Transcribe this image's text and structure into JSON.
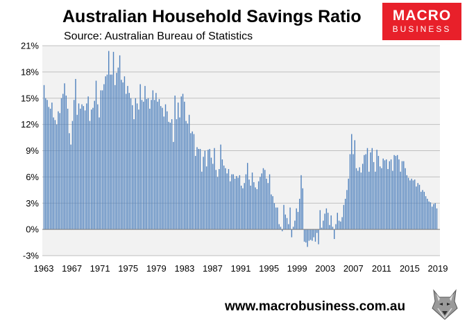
{
  "title": "Australian Household Savings Ratio",
  "subtitle": "Source: Australian Bureau of Statistics",
  "logo": {
    "line1": "MACRO",
    "line2": "BUSINESS"
  },
  "footer": {
    "url": "www.macrobusiness.com.au"
  },
  "colors": {
    "bar": "#4f81bd",
    "plot_bg": "#f2f2f2",
    "grid": "#bfbfbf",
    "logo": "#e8202a"
  },
  "chart_data": {
    "type": "bar",
    "title": "Australian Household Savings Ratio",
    "subtitle": "Source: Australian Bureau of Statistics",
    "frequency": "quarterly",
    "ylim": [
      -3,
      21
    ],
    "yticks": [
      "21%",
      "18%",
      "15%",
      "12%",
      "9%",
      "6%",
      "3%",
      "0%",
      "-3%"
    ],
    "xticks": [
      "1963",
      "1967",
      "1971",
      "1975",
      "1979",
      "1983",
      "1987",
      "1991",
      "1995",
      "1999",
      "2003",
      "2007",
      "2011",
      "2015",
      "2019"
    ],
    "grid": true,
    "legend": "none",
    "values": [
      16.5,
      15.0,
      14.8,
      14.0,
      13.8,
      14.5,
      12.8,
      12.5,
      12.0,
      13.5,
      13.3,
      15.0,
      15.5,
      16.7,
      15.3,
      13.8,
      11.0,
      9.7,
      12.4,
      14.8,
      17.2,
      13.1,
      14.4,
      13.8,
      14.3,
      14.1,
      13.6,
      14.4,
      15.2,
      12.4,
      13.7,
      13.9,
      14.7,
      17.0,
      14.3,
      12.8,
      15.9,
      15.9,
      16.6,
      17.5,
      17.7,
      20.4,
      17.7,
      17.7,
      20.3,
      16.5,
      17.9,
      18.5,
      19.9,
      17.1,
      16.8,
      17.5,
      15.5,
      16.4,
      15.6,
      15.0,
      14.2,
      12.6,
      15.0,
      14.4,
      13.7,
      16.6,
      14.8,
      14.6,
      16.4,
      14.9,
      15.0,
      13.8,
      14.8,
      15.9,
      14.8,
      15.6,
      14.6,
      14.9,
      14.1,
      13.9,
      12.9,
      14.3,
      13.5,
      12.3,
      12.2,
      12.6,
      10.0,
      15.3,
      12.6,
      14.5,
      12.8,
      15.2,
      15.5,
      14.6,
      12.4,
      12.1,
      13.1,
      11.0,
      11.2,
      10.9,
      8.4,
      9.4,
      9.2,
      9.2,
      6.6,
      8.3,
      9.0,
      7.2,
      9.1,
      9.2,
      8.2,
      7.5,
      9.3,
      6.8,
      6.0,
      6.9,
      9.7,
      8.0,
      7.3,
      7.0,
      6.4,
      6.9,
      5.5,
      6.3,
      6.3,
      5.8,
      6.1,
      5.9,
      6.2,
      5.0,
      4.7,
      5.3,
      6.3,
      7.6,
      5.7,
      5.0,
      6.5,
      5.4,
      4.8,
      4.6,
      5.5,
      6.0,
      6.4,
      7.0,
      6.8,
      5.8,
      5.3,
      6.3,
      4.0,
      3.8,
      3.0,
      2.5,
      2.5,
      0.6,
      0.3,
      -0.2,
      2.8,
      1.7,
      1.3,
      0.6,
      2.5,
      -0.9,
      0.3,
      1.0,
      2.4,
      2.0,
      3.5,
      6.2,
      4.7,
      -1.4,
      -1.5,
      -2.0,
      -1.3,
      -1.2,
      -1.3,
      -0.9,
      -1.4,
      -0.4,
      -1.7,
      2.2,
      0.2,
      1.0,
      1.8,
      2.4,
      1.9,
      0.5,
      1.6,
      0.3,
      -1.1,
      0.6,
      1.9,
      1.0,
      0.9,
      1.4,
      2.8,
      3.5,
      4.5,
      5.8,
      8.6,
      10.9,
      8.6,
      10.2,
      7.0,
      6.7,
      7.1,
      6.5,
      7.5,
      8.5,
      8.6,
      9.3,
      6.6,
      8.8,
      9.3,
      7.7,
      6.6,
      9.1,
      8.4,
      7.2,
      7.0,
      8.1,
      7.9,
      8.0,
      6.9,
      7.8,
      8.0,
      6.7,
      8.5,
      8.4,
      8.5,
      8.0,
      6.6,
      7.8,
      7.8,
      7.0,
      6.2,
      5.9,
      5.6,
      5.8,
      5.6,
      5.7,
      4.9,
      5.3,
      5.1,
      4.3,
      4.5,
      4.3,
      3.8,
      3.5,
      3.2,
      3.1,
      2.6,
      2.9,
      3.0,
      2.4
    ]
  }
}
